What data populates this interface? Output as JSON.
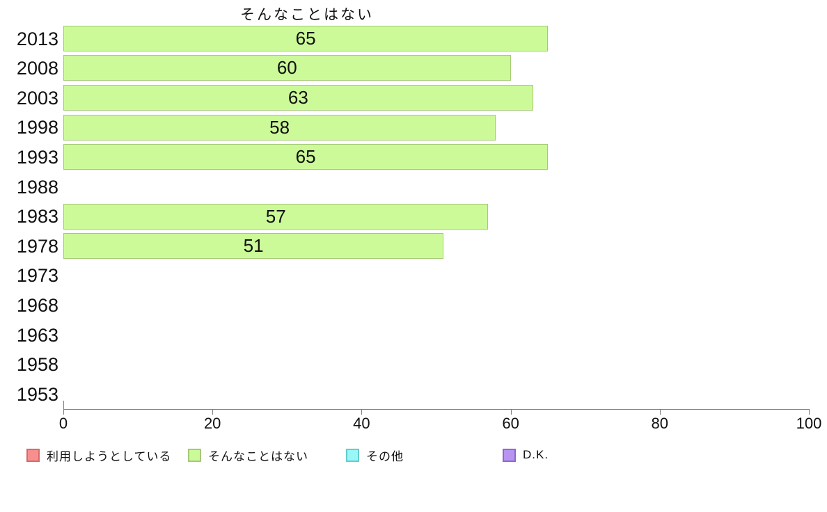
{
  "chart_data": {
    "type": "bar",
    "orientation": "horizontal",
    "title": "そんなことはない",
    "categories": [
      "2013",
      "2008",
      "2003",
      "1998",
      "1993",
      "1988",
      "1983",
      "1978",
      "1973",
      "1968",
      "1963",
      "1958",
      "1953"
    ],
    "values": [
      65,
      60,
      63,
      58,
      65,
      null,
      57,
      51,
      null,
      null,
      null,
      null,
      null
    ],
    "xlabel": "",
    "ylabel": "",
    "xlim": [
      0,
      100
    ],
    "xticks": [
      0,
      20,
      40,
      60,
      80,
      100
    ],
    "grid": false,
    "legend_position": "bottom",
    "series_name": "そんなことはない",
    "series_color": "#ccfa99",
    "series_border": "#a6c878",
    "legend": [
      {
        "label": "利用しようとしている",
        "color": "#f78f8f",
        "border": "#d66a6a"
      },
      {
        "label": "そんなことはない",
        "color": "#ccfa99",
        "border": "#a6c878"
      },
      {
        "label": "その他",
        "color": "#99f7f7",
        "border": "#66cccc"
      },
      {
        "label": "D.K.",
        "color": "#b893f0",
        "border": "#8f66d1"
      }
    ]
  },
  "colors": {
    "axis": "#808080",
    "text": "#111111",
    "background": "#ffffff"
  }
}
